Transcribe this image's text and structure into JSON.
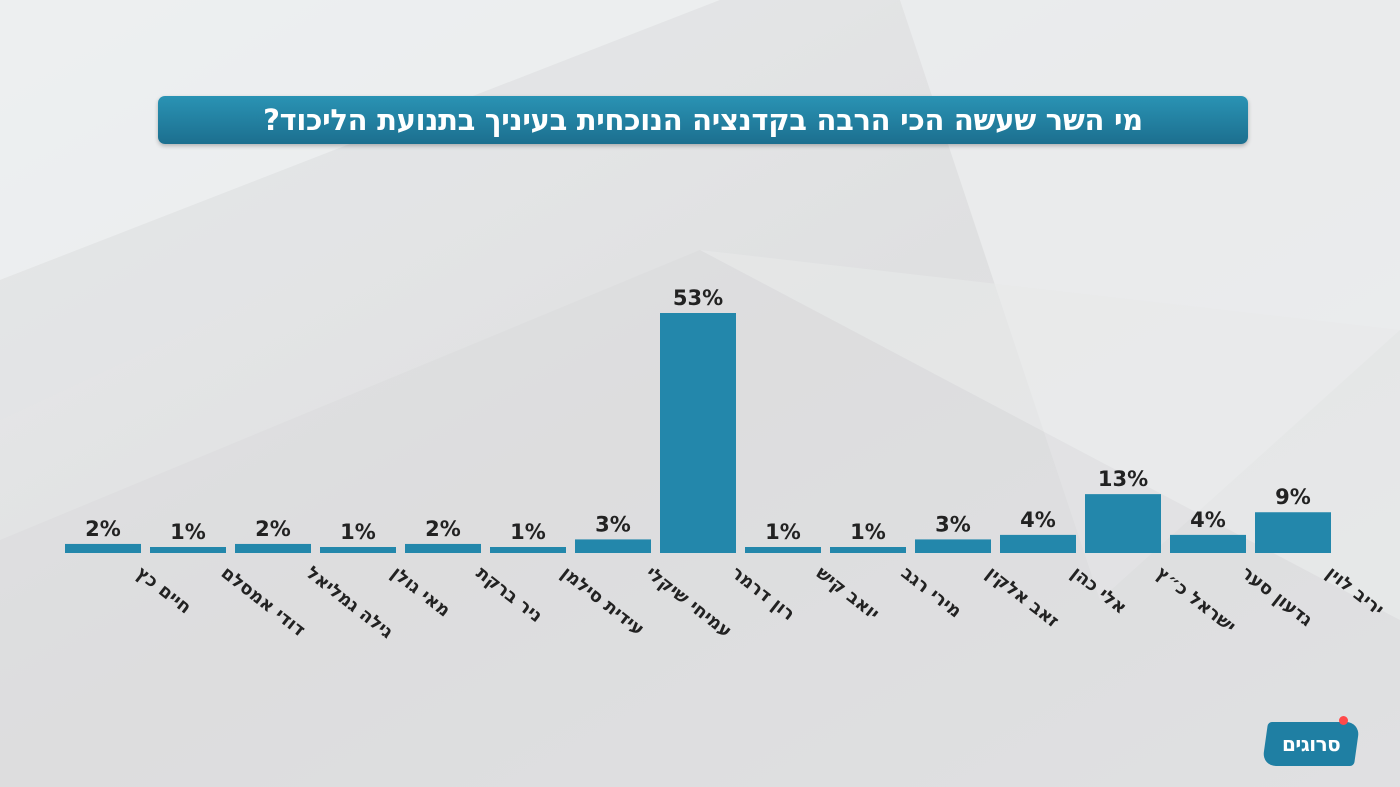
{
  "title": "מי השר שעשה הכי הרבה בקדנציה הנוכחית בעיניך בתנועת הליכוד?",
  "logo": "סרוגים",
  "colors": {
    "bar": "#2387ab",
    "bar_dark": "#1b6f8e",
    "title_bg": "#2187aa",
    "text": "#222222"
  },
  "chart_data": {
    "type": "bar",
    "title": "מי השר שעשה הכי הרבה בקדנציה הנוכחית בעיניך בתנועת הליכוד?",
    "xlabel": "",
    "ylabel": "",
    "ylim": [
      0,
      53
    ],
    "grid": false,
    "legend": "none",
    "categories": [
      "חיים כץ",
      "דודי אמסלם",
      "גילה גמליאל",
      "מאי גולן",
      "ניר ברקת",
      "עידית סילמן",
      "עמיחי שיקלי",
      "רון דרמר",
      "יואב קיש",
      "מירי רגב",
      "זאב אלקין",
      "אלי כהן",
      "ישראל כ״ץ",
      "גדעון סער",
      "יריב לוין"
    ],
    "values": [
      2,
      1,
      2,
      1,
      2,
      1,
      3,
      53,
      1,
      1,
      3,
      4,
      13,
      4,
      9
    ],
    "value_labels": [
      "2%",
      "1%",
      "2%",
      "1%",
      "2%",
      "1%",
      "3%",
      "53%",
      "1%",
      "1%",
      "3%",
      "4%",
      "13%",
      "4%",
      "9%"
    ]
  }
}
